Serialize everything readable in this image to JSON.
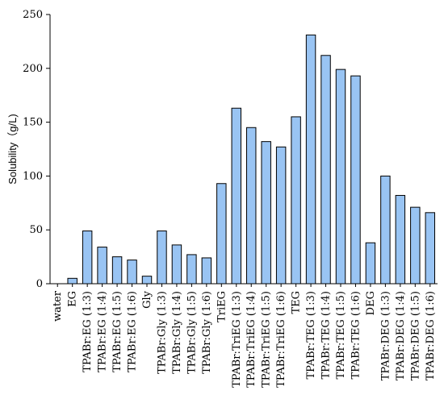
{
  "chart_data": {
    "type": "bar",
    "title": "",
    "xlabel": "",
    "ylabel": "Solubility（g/L)",
    "ylim": [
      0,
      250
    ],
    "yticks": [
      0,
      50,
      100,
      150,
      200,
      250
    ],
    "grid": false,
    "categories": [
      "water",
      "EG",
      "TPABr:EG (1:3)",
      "TPABr:EG (1:4)",
      "TPABr:EG (1:5)",
      "TPABr:EG (1:6)",
      "Gly",
      "TPABr:Gly (1:3)",
      "TPABr:Gly (1:4)",
      "TPABr:Gly (1:5)",
      "TPABr:Gly (1:6)",
      "TriEG",
      "TPABr:TriEG (1:3)",
      "TPABr:TriEG (1:4)",
      "TPABr:TriEG (1:5)",
      "TPABr:TriEG (1:6)",
      "TEG",
      "TPABr:TEG (1:3)",
      "TPABr:TEG (1:4)",
      "TPABr:TEG (1:5)",
      "TPABr:TEG (1:6)",
      "DEG",
      "TPABr:DEG (1:3)",
      "TPABr:DEG (1:4)",
      "TPABr:DEG (1:5)",
      "TPABr:DEG (1:6)"
    ],
    "values": [
      0,
      5,
      49,
      34,
      25,
      22,
      7,
      49,
      36,
      27,
      24,
      93,
      163,
      145,
      132,
      127,
      155,
      231,
      212,
      199,
      193,
      38,
      100,
      82,
      71,
      66
    ],
    "bar_color": "#99c4f3"
  }
}
